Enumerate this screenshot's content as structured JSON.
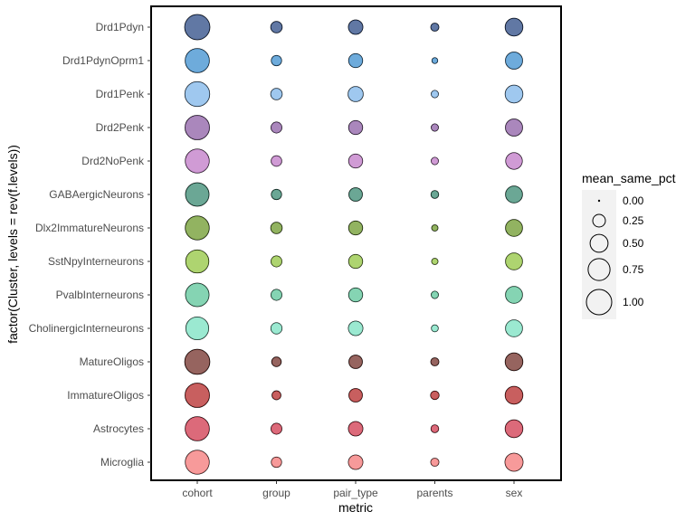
{
  "chart_data": {
    "type": "scatter",
    "xlabel": "metric",
    "ylabel": "factor(Cluster, levels = rev(f.levels))",
    "x_categories": [
      "cohort",
      "group",
      "pair_type",
      "parents",
      "sex"
    ],
    "y_categories": [
      "Drd1Pdyn",
      "Drd1PdynOprm1",
      "Drd1Penk",
      "Drd2Penk",
      "Drd2NoPenk",
      "GABAergicNeurons",
      "Dlx2ImmatureNeurons",
      "SstNpyInterneurons",
      "PvalbInterneurons",
      "CholinergicInterneurons",
      "MatureOligos",
      "ImmatureOligos",
      "Astrocytes",
      "Microglia"
    ],
    "cluster_colors": [
      "#2c4b85",
      "#3d8fcf",
      "#7fb5ea",
      "#8e5fa6",
      "#c07ac7",
      "#398a72",
      "#6e9a2c",
      "#93c640",
      "#5cc69a",
      "#79e2c2",
      "#73302a",
      "#b62a2a",
      "#d0384e",
      "#f47878"
    ],
    "point_alpha": 0.75,
    "grid": false,
    "series": [
      {
        "name": "cohort",
        "values": [
          0.98,
          0.9,
          0.95,
          0.92,
          0.88,
          0.85,
          0.88,
          0.82,
          0.85,
          0.8,
          0.97,
          0.92,
          0.9,
          0.88
        ]
      },
      {
        "name": "group",
        "values": [
          0.2,
          0.16,
          0.2,
          0.18,
          0.17,
          0.16,
          0.2,
          0.18,
          0.18,
          0.19,
          0.14,
          0.12,
          0.18,
          0.16
        ]
      },
      {
        "name": "pair_type",
        "values": [
          0.32,
          0.3,
          0.35,
          0.3,
          0.3,
          0.28,
          0.3,
          0.3,
          0.3,
          0.32,
          0.28,
          0.28,
          0.32,
          0.32
        ]
      },
      {
        "name": "parents",
        "values": [
          0.1,
          0.05,
          0.08,
          0.08,
          0.08,
          0.09,
          0.06,
          0.06,
          0.08,
          0.07,
          0.1,
          0.11,
          0.09,
          0.1
        ]
      },
      {
        "name": "sex",
        "values": [
          0.48,
          0.45,
          0.48,
          0.45,
          0.42,
          0.44,
          0.44,
          0.44,
          0.44,
          0.44,
          0.48,
          0.48,
          0.48,
          0.5
        ]
      }
    ],
    "legend": {
      "title": "mean_same_pct",
      "position": "right",
      "breaks": [
        0.0,
        0.25,
        0.5,
        0.75,
        1.0
      ],
      "labels": [
        "0.00",
        "0.25",
        "0.50",
        "0.75",
        "1.00"
      ]
    }
  }
}
